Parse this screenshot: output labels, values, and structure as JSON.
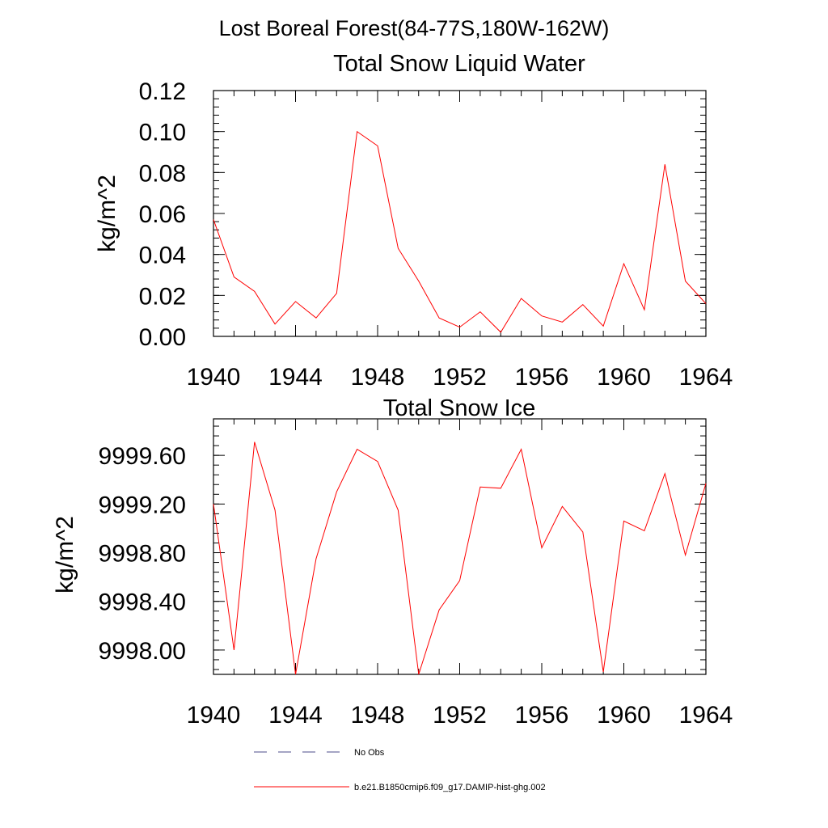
{
  "main_title": "Lost Boreal Forest(84-77S,180W-162W)",
  "chart_data": [
    {
      "type": "line",
      "title": "Total Snow Liquid Water",
      "ylabel": "kg/m^2",
      "xlabel": "",
      "xlim": [
        1940,
        1964
      ],
      "ylim": [
        0,
        0.12
      ],
      "x_ticks": [
        "1940",
        "1944",
        "1948",
        "1952",
        "1956",
        "1960",
        "1964"
      ],
      "y_ticks": [
        "0.00",
        "0.02",
        "0.04",
        "0.06",
        "0.08",
        "0.10",
        "0.12"
      ],
      "grid": false,
      "series": [
        {
          "name": "b.e21.B1850cmip6.f09_g17.DAMIP-hist-ghg.002",
          "color": "#ff0000",
          "x": [
            1940,
            1941,
            1942,
            1943,
            1944,
            1945,
            1946,
            1947,
            1948,
            1949,
            1950,
            1951,
            1952,
            1953,
            1954,
            1955,
            1956,
            1957,
            1958,
            1959,
            1960,
            1961,
            1962,
            1963,
            1964
          ],
          "y": [
            0.057,
            0.029,
            0.022,
            0.006,
            0.017,
            0.009,
            0.021,
            0.1,
            0.093,
            0.043,
            0.027,
            0.009,
            0.0045,
            0.012,
            0.002,
            0.0185,
            0.01,
            0.007,
            0.0155,
            0.005,
            0.0355,
            0.013,
            0.084,
            0.027,
            0.016
          ]
        }
      ]
    },
    {
      "type": "line",
      "title": "Total Snow Ice",
      "ylabel": "kg/m^2",
      "xlabel": "",
      "xlim": [
        1940,
        1964
      ],
      "ylim": [
        9997.8,
        9999.9
      ],
      "x_ticks": [
        "1940",
        "1944",
        "1948",
        "1952",
        "1956",
        "1960",
        "1964"
      ],
      "y_ticks": [
        "9998.00",
        "9998.40",
        "9998.80",
        "9999.20",
        "9999.60"
      ],
      "grid": false,
      "series": [
        {
          "name": "b.e21.B1850cmip6.f09_g17.DAMIP-hist-ghg.002",
          "color": "#ff0000",
          "x": [
            1940,
            1941,
            1942,
            1943,
            1944,
            1945,
            1946,
            1947,
            1948,
            1949,
            1950,
            1951,
            1952,
            1953,
            1954,
            1955,
            1956,
            1957,
            1958,
            1959,
            1960,
            1961,
            1962,
            1963,
            1964
          ],
          "y": [
            9999.2,
            9998.0,
            9999.71,
            9999.15,
            9997.8,
            9998.75,
            9999.3,
            9999.65,
            9999.55,
            9999.15,
            9997.8,
            9998.33,
            9998.57,
            9999.34,
            9999.33,
            9999.65,
            9998.84,
            9999.18,
            9998.97,
            9997.82,
            9999.06,
            9998.98,
            9999.45,
            9998.78,
            9999.37
          ]
        }
      ]
    }
  ],
  "legend": {
    "placement": "bottom",
    "items": [
      {
        "label": "No Obs",
        "color": "#4b4b8b",
        "style": "dashed"
      },
      {
        "label": "b.e21.B1850cmip6.f09_g17.DAMIP-hist-ghg.002",
        "color": "#ff0000",
        "style": "solid"
      }
    ]
  }
}
